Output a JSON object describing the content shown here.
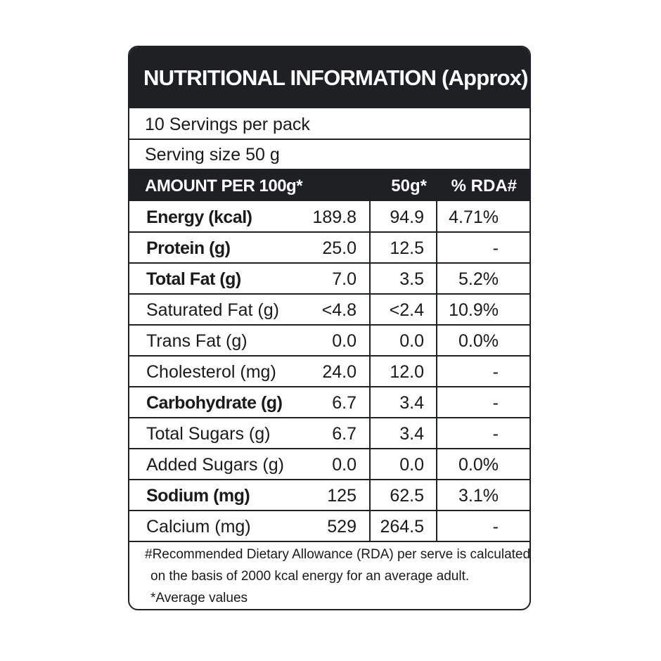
{
  "header": {
    "title": "NUTRITIONAL INFORMATION (Approx)"
  },
  "servings": [
    "10 Servings per pack",
    "Serving size 50 g"
  ],
  "table": {
    "columns": [
      "AMOUNT PER 100g*",
      "50g*",
      "% RDA#"
    ],
    "rows": [
      {
        "label": "Energy (kcal)",
        "per100": "189.8",
        "per50": "94.9",
        "rda": "4.71%",
        "bold": true
      },
      {
        "label": "Protein (g)",
        "per100": "25.0",
        "per50": "12.5",
        "rda": "-",
        "bold": true
      },
      {
        "label": "Total Fat (g)",
        "per100": "7.0",
        "per50": "3.5",
        "rda": "5.2%",
        "bold": true
      },
      {
        "label": "Saturated Fat (g)",
        "per100": "<4.8",
        "per50": "<2.4",
        "rda": "10.9%",
        "bold": false
      },
      {
        "label": "Trans Fat (g)",
        "per100": "0.0",
        "per50": "0.0",
        "rda": "0.0%",
        "bold": false
      },
      {
        "label": "Cholesterol (mg)",
        "per100": "24.0",
        "per50": "12.0",
        "rda": "-",
        "bold": false
      },
      {
        "label": "Carbohydrate (g)",
        "per100": "6.7",
        "per50": "3.4",
        "rda": "-",
        "bold": true
      },
      {
        "label": "Total Sugars (g)",
        "per100": "6.7",
        "per50": "3.4",
        "rda": "-",
        "bold": false
      },
      {
        "label": "Added Sugars (g)",
        "per100": "0.0",
        "per50": "0.0",
        "rda": "0.0%",
        "bold": false
      },
      {
        "label": "Sodium (mg)",
        "per100": "125",
        "per50": "62.5",
        "rda": "3.1%",
        "bold": true
      },
      {
        "label": "Calcium (mg)",
        "per100": "529",
        "per50": "264.5",
        "rda": "-",
        "bold": false
      }
    ]
  },
  "footnote": [
    "#Recommended Dietary Allowance (RDA) per serve is calculated",
    "on the basis of 2000 kcal energy for an average adult.",
    "*Average values"
  ]
}
